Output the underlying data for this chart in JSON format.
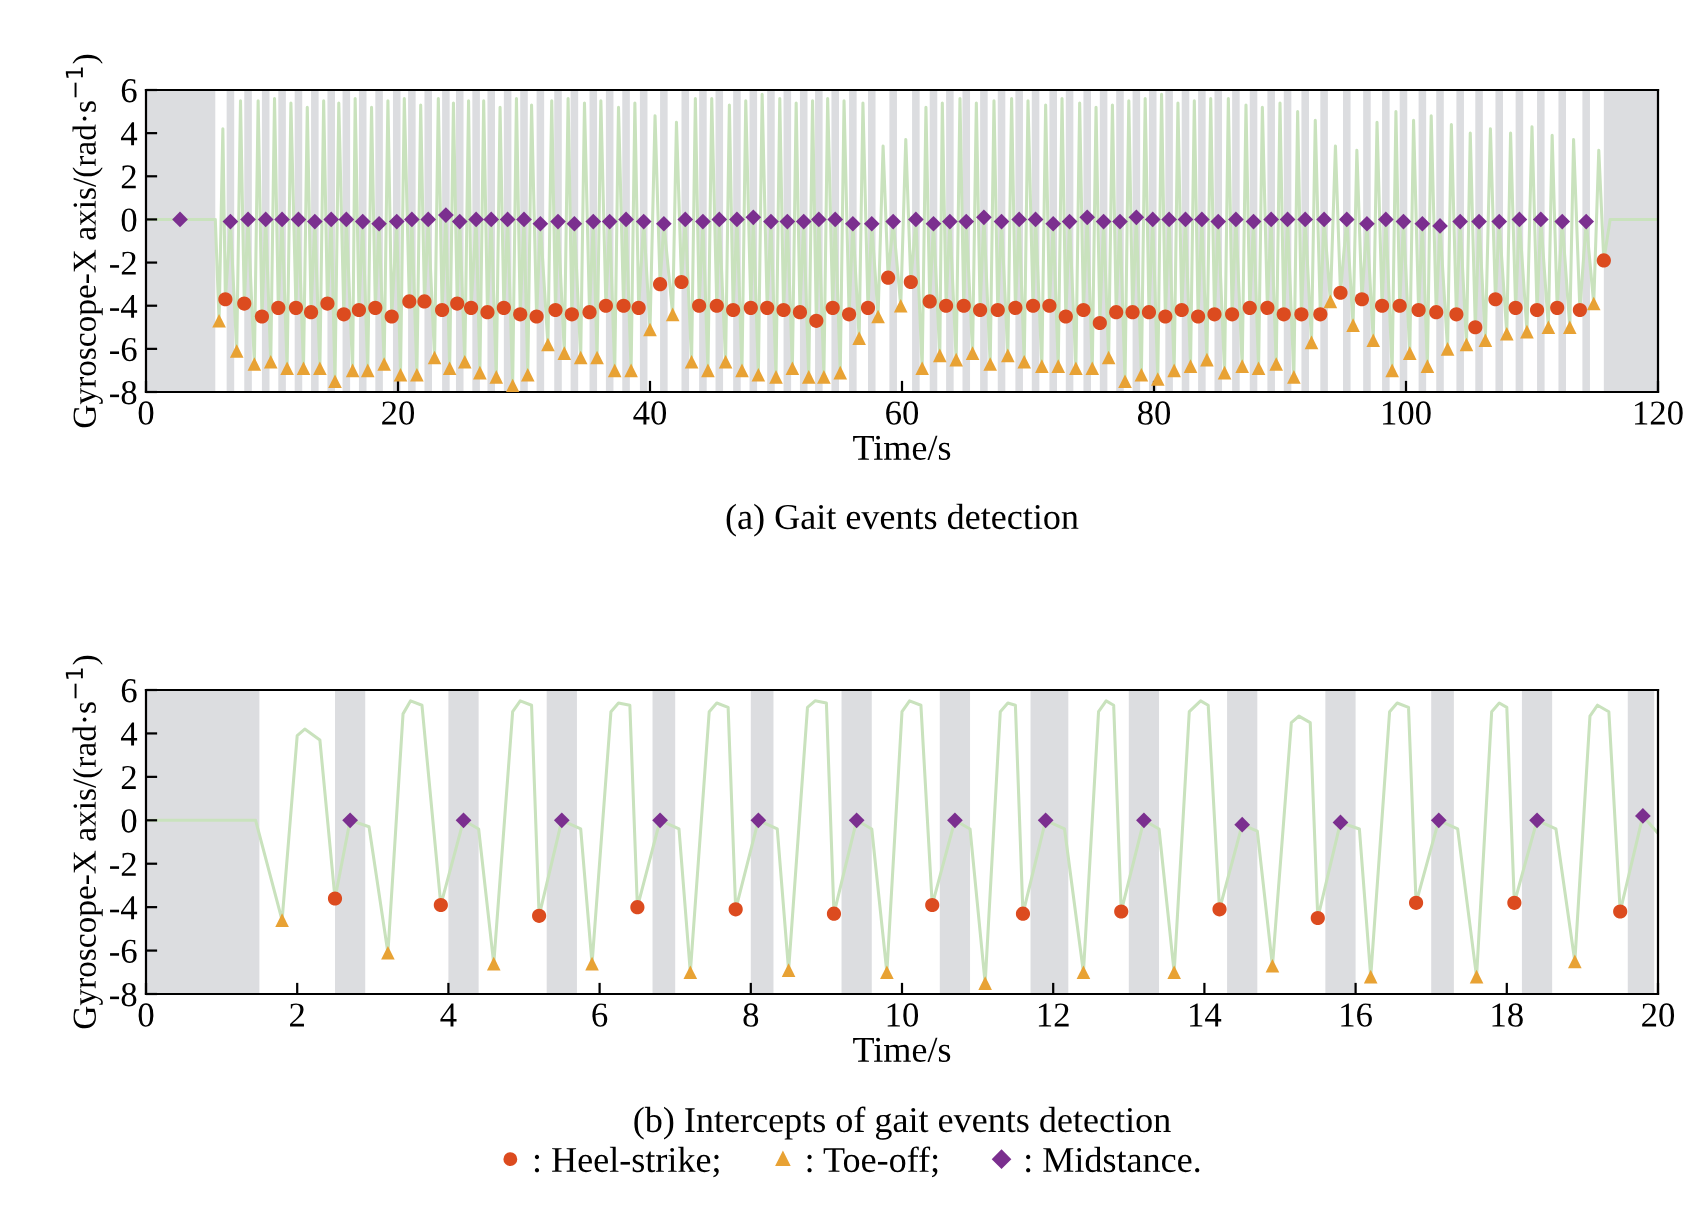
{
  "chart_data": [
    {
      "type": "scatter",
      "title": "(a) Gait events detection",
      "xlabel": "Time/s",
      "ylabel": "Gyroscope-X axis/(rad·s$^{−1}$)",
      "xlim": [
        0,
        120
      ],
      "ylim": [
        -8,
        6
      ],
      "xticks": [
        0,
        20,
        40,
        60,
        80,
        100,
        120
      ],
      "yticks": [
        -8,
        -6,
        -4,
        -2,
        0,
        2,
        4,
        6
      ],
      "grid": false,
      "bands": [
        {
          "axis": "x",
          "from": 0,
          "to": 5.5,
          "color": "#dcdde0"
        },
        {
          "axis": "x",
          "from": 115.7,
          "to": 120,
          "color": "#dcdde0"
        },
        {
          "axis": "x",
          "from": 6.4,
          "to": 7.0,
          "color": "#dcdde0"
        },
        {
          "axis": "x",
          "from": 7.8,
          "to": 8.4,
          "color": "#dcdde0"
        },
        {
          "axis": "x",
          "from": 9.2,
          "to": 9.8,
          "color": "#dcdde0"
        },
        {
          "axis": "x",
          "from": 10.5,
          "to": 11.1,
          "color": "#dcdde0"
        },
        {
          "axis": "x",
          "from": 11.8,
          "to": 12.4,
          "color": "#dcdde0"
        },
        {
          "axis": "x",
          "from": 13.1,
          "to": 13.7,
          "color": "#dcdde0"
        },
        {
          "axis": "x",
          "from": 14.4,
          "to": 15.0,
          "color": "#dcdde0"
        },
        {
          "axis": "x",
          "from": 15.6,
          "to": 16.2,
          "color": "#dcdde0"
        },
        {
          "axis": "x",
          "from": 16.9,
          "to": 17.5,
          "color": "#dcdde0"
        },
        {
          "axis": "x",
          "from": 18.2,
          "to": 18.8,
          "color": "#dcdde0"
        },
        {
          "axis": "x",
          "from": 19.6,
          "to": 20.2,
          "color": "#dcdde0"
        },
        {
          "axis": "x",
          "from": 20.8,
          "to": 21.4,
          "color": "#dcdde0"
        },
        {
          "axis": "x",
          "from": 22.1,
          "to": 22.7,
          "color": "#dcdde0"
        },
        {
          "axis": "x",
          "from": 23.5,
          "to": 24.1,
          "color": "#dcdde0"
        },
        {
          "axis": "x",
          "from": 24.6,
          "to": 25.2,
          "color": "#dcdde0"
        },
        {
          "axis": "x",
          "from": 25.9,
          "to": 26.5,
          "color": "#dcdde0"
        },
        {
          "axis": "x",
          "from": 27.1,
          "to": 27.7,
          "color": "#dcdde0"
        },
        {
          "axis": "x",
          "from": 28.4,
          "to": 29.0,
          "color": "#dcdde0"
        },
        {
          "axis": "x",
          "from": 29.7,
          "to": 30.3,
          "color": "#dcdde0"
        },
        {
          "axis": "x",
          "from": 31.0,
          "to": 31.6,
          "color": "#dcdde0"
        },
        {
          "axis": "x",
          "from": 32.4,
          "to": 33.0,
          "color": "#dcdde0"
        },
        {
          "axis": "x",
          "from": 33.7,
          "to": 34.3,
          "color": "#dcdde0"
        },
        {
          "axis": "x",
          "from": 35.2,
          "to": 35.8,
          "color": "#dcdde0"
        },
        {
          "axis": "x",
          "from": 36.5,
          "to": 37.1,
          "color": "#dcdde0"
        },
        {
          "axis": "x",
          "from": 37.8,
          "to": 38.4,
          "color": "#dcdde0"
        },
        {
          "axis": "x",
          "from": 39.2,
          "to": 39.8,
          "color": "#dcdde0"
        },
        {
          "axis": "x",
          "from": 40.8,
          "to": 41.4,
          "color": "#dcdde0"
        },
        {
          "axis": "x",
          "from": 42.5,
          "to": 43.1,
          "color": "#dcdde0"
        },
        {
          "axis": "x",
          "from": 43.9,
          "to": 44.5,
          "color": "#dcdde0"
        },
        {
          "axis": "x",
          "from": 45.2,
          "to": 45.8,
          "color": "#dcdde0"
        },
        {
          "axis": "x",
          "from": 46.6,
          "to": 47.2,
          "color": "#dcdde0"
        },
        {
          "axis": "x",
          "from": 47.9,
          "to": 48.5,
          "color": "#dcdde0"
        },
        {
          "axis": "x",
          "from": 49.3,
          "to": 49.9,
          "color": "#dcdde0"
        },
        {
          "axis": "x",
          "from": 50.6,
          "to": 51.2,
          "color": "#dcdde0"
        },
        {
          "axis": "x",
          "from": 51.9,
          "to": 52.5,
          "color": "#dcdde0"
        },
        {
          "axis": "x",
          "from": 53.1,
          "to": 53.7,
          "color": "#dcdde0"
        },
        {
          "axis": "x",
          "from": 54.4,
          "to": 55.0,
          "color": "#dcdde0"
        },
        {
          "axis": "x",
          "from": 55.8,
          "to": 56.4,
          "color": "#dcdde0"
        },
        {
          "axis": "x",
          "from": 57.3,
          "to": 57.9,
          "color": "#dcdde0"
        },
        {
          "axis": "x",
          "from": 59.0,
          "to": 59.6,
          "color": "#dcdde0"
        },
        {
          "axis": "x",
          "from": 60.8,
          "to": 61.4,
          "color": "#dcdde0"
        },
        {
          "axis": "x",
          "from": 62.2,
          "to": 62.8,
          "color": "#dcdde0"
        },
        {
          "axis": "x",
          "from": 63.5,
          "to": 64.1,
          "color": "#dcdde0"
        },
        {
          "axis": "x",
          "from": 64.8,
          "to": 65.4,
          "color": "#dcdde0"
        },
        {
          "axis": "x",
          "from": 66.2,
          "to": 66.8,
          "color": "#dcdde0"
        },
        {
          "axis": "x",
          "from": 67.6,
          "to": 68.2,
          "color": "#dcdde0"
        },
        {
          "axis": "x",
          "from": 69.0,
          "to": 69.6,
          "color": "#dcdde0"
        },
        {
          "axis": "x",
          "from": 70.3,
          "to": 70.9,
          "color": "#dcdde0"
        },
        {
          "axis": "x",
          "from": 71.7,
          "to": 72.3,
          "color": "#dcdde0"
        },
        {
          "axis": "x",
          "from": 73.0,
          "to": 73.6,
          "color": "#dcdde0"
        },
        {
          "axis": "x",
          "from": 74.4,
          "to": 75.0,
          "color": "#dcdde0"
        },
        {
          "axis": "x",
          "from": 75.7,
          "to": 76.3,
          "color": "#dcdde0"
        },
        {
          "axis": "x",
          "from": 77.0,
          "to": 77.6,
          "color": "#dcdde0"
        },
        {
          "axis": "x",
          "from": 78.3,
          "to": 78.9,
          "color": "#dcdde0"
        },
        {
          "axis": "x",
          "from": 79.6,
          "to": 80.2,
          "color": "#dcdde0"
        },
        {
          "axis": "x",
          "from": 80.9,
          "to": 81.5,
          "color": "#dcdde0"
        },
        {
          "axis": "x",
          "from": 82.2,
          "to": 82.8,
          "color": "#dcdde0"
        },
        {
          "axis": "x",
          "from": 83.5,
          "to": 84.1,
          "color": "#dcdde0"
        },
        {
          "axis": "x",
          "from": 84.8,
          "to": 85.4,
          "color": "#dcdde0"
        },
        {
          "axis": "x",
          "from": 86.2,
          "to": 86.8,
          "color": "#dcdde0"
        },
        {
          "axis": "x",
          "from": 87.6,
          "to": 88.2,
          "color": "#dcdde0"
        },
        {
          "axis": "x",
          "from": 89.0,
          "to": 89.6,
          "color": "#dcdde0"
        },
        {
          "axis": "x",
          "from": 90.3,
          "to": 90.9,
          "color": "#dcdde0"
        },
        {
          "axis": "x",
          "from": 91.7,
          "to": 92.3,
          "color": "#dcdde0"
        },
        {
          "axis": "x",
          "from": 93.2,
          "to": 93.8,
          "color": "#dcdde0"
        },
        {
          "axis": "x",
          "from": 95.0,
          "to": 95.6,
          "color": "#dcdde0"
        },
        {
          "axis": "x",
          "from": 96.6,
          "to": 97.2,
          "color": "#dcdde0"
        },
        {
          "axis": "x",
          "from": 98.1,
          "to": 98.7,
          "color": "#dcdde0"
        },
        {
          "axis": "x",
          "from": 99.5,
          "to": 100.1,
          "color": "#dcdde0"
        },
        {
          "axis": "x",
          "from": 101.0,
          "to": 101.6,
          "color": "#dcdde0"
        },
        {
          "axis": "x",
          "from": 102.4,
          "to": 103.0,
          "color": "#dcdde0"
        },
        {
          "axis": "x",
          "from": 104.0,
          "to": 104.6,
          "color": "#dcdde0"
        },
        {
          "axis": "x",
          "from": 105.5,
          "to": 106.1,
          "color": "#dcdde0"
        },
        {
          "axis": "x",
          "from": 107.1,
          "to": 107.7,
          "color": "#dcdde0"
        },
        {
          "axis": "x",
          "from": 108.7,
          "to": 109.3,
          "color": "#dcdde0"
        },
        {
          "axis": "x",
          "from": 110.4,
          "to": 111.0,
          "color": "#dcdde0"
        },
        {
          "axis": "x",
          "from": 112.1,
          "to": 112.7,
          "color": "#dcdde0"
        },
        {
          "axis": "x",
          "from": 114.0,
          "to": 114.6,
          "color": "#dcdde0"
        }
      ],
      "series": [
        {
          "type": "line",
          "color": "#c9e2bd",
          "x": [
            0,
            5.5,
            5.8,
            6.1,
            6.3,
            6.7,
            7.2,
            7.5,
            7.8,
            8.1,
            8.6,
            8.9,
            9.2,
            9.5,
            9.9,
            10.2,
            10.5,
            10.8,
            11.2,
            11.5,
            11.9,
            12.1,
            12.5,
            12.8,
            13.1,
            13.4,
            13.8,
            14.1,
            14.4,
            14.7,
            15.0,
            15.3,
            15.7,
            15.9,
            16.4,
            16.6,
            16.9,
            17.2,
            17.6,
            17.9,
            18.2,
            18.5,
            18.9,
            19.2,
            19.5,
            19.9,
            20.2,
            20.5,
            20.9,
            21.1,
            21.5,
            21.8,
            22.1,
            22.4,
            22.9,
            23.2,
            23.5,
            23.8,
            24.1,
            24.4,
            24.7,
            24.9,
            25.3,
            25.6,
            25.8,
            26.2,
            26.5,
            26.8,
            27.1,
            27.4,
            27.8,
            28.1,
            28.4,
            28.7,
            29.1,
            29.4,
            29.7,
            30.0,
            30.3,
            30.6,
            31.0,
            31.3,
            31.9,
            32.2,
            32.5,
            32.7,
            33.2,
            33.5,
            33.8,
            34.0,
            34.5,
            34.8,
            35.2,
            35.5,
            35.8,
            36.1,
            36.5,
            36.8,
            37.2,
            37.5,
            37.9,
            38.1,
            38.5,
            38.8,
            39.1,
            39.5,
            40.0,
            40.4,
            40.8,
            41.1,
            41.8,
            42.1,
            42.5,
            42.8,
            43.3,
            43.6,
            43.9,
            44.2,
            44.6,
            44.9,
            45.3,
            45.5,
            46.0,
            46.3,
            46.6,
            46.9,
            47.3,
            47.6,
            48.0,
            48.2,
            48.6,
            48.9,
            49.3,
            49.6,
            50.0,
            50.3,
            50.6,
            50.9,
            51.3,
            51.6,
            51.9,
            52.2,
            52.6,
            52.9,
            53.2,
            53.4,
            53.8,
            54.1,
            54.5,
            54.7,
            55.1,
            55.4,
            55.8,
            56.1,
            56.6,
            56.9,
            57.3,
            57.6,
            58.1,
            58.5,
            58.9,
            59.3,
            59.9,
            60.3,
            60.7,
            61.1,
            61.6,
            61.9,
            62.2,
            62.5,
            63.0,
            63.2,
            63.5,
            63.8,
            64.3,
            64.6,
            64.9,
            65.1,
            65.6,
            65.9,
            66.2,
            66.5,
            67.0,
            67.3,
            67.6,
            67.9,
            68.4,
            68.7,
            69.0,
            69.3,
            69.7,
            70.0,
            70.4,
            70.6,
            71.1,
            71.4,
            71.7,
            72.0,
            72.4,
            72.7,
            73.0,
            73.3,
            73.8,
            74.1,
            74.4,
            74.7,
            75.1,
            75.4,
            75.7,
            76.0,
            76.4,
            76.7,
            77.0,
            77.3,
            77.7,
            78.0,
            78.3,
            78.6,
            79.0,
            79.3,
            79.6,
            79.9,
            80.3,
            80.6,
            80.9,
            81.2,
            81.6,
            81.9,
            82.2,
            82.5,
            82.9,
            83.2,
            83.5,
            83.8,
            84.2,
            84.5,
            84.8,
            85.1,
            85.6,
            85.9,
            86.2,
            86.5,
            87.0,
            87.3,
            87.6,
            87.9,
            88.3,
            88.6,
            89.0,
            89.3,
            89.7,
            90.0,
            90.3,
            90.6,
            91.1,
            91.4,
            91.7,
            92.0,
            92.5,
            92.8,
            93.2,
            93.5,
            94.0,
            94.4,
            94.8,
            95.3,
            95.8,
            96.1,
            96.5,
            96.9,
            97.4,
            97.7,
            98.1,
            98.4,
            98.9,
            99.2,
            99.5,
            99.8,
            100.3,
            100.6,
            101.0,
            101.3,
            101.7,
            102.0,
            102.4,
            102.7,
            103.3,
            103.6,
            104.0,
            104.3,
            104.8,
            105.1,
            105.5,
            105.8,
            106.3,
            106.7,
            107.1,
            107.4,
            108.0,
            108.3,
            108.7,
            109.0,
            109.6,
            110.0,
            110.4,
            110.7,
            111.3,
            111.6,
            112.0,
            112.4,
            113.0,
            113.3,
            113.8,
            114.3,
            114.9,
            115.3,
            115.7,
            116.2,
            120
          ],
          "values": [
            0,
            0,
            -4.7,
            4.2,
            -3.7,
            -0.1,
            -6.1,
            5.5,
            -3.9,
            0,
            -6.7,
            5.5,
            -4.5,
            0,
            -6.6,
            5.6,
            -4.1,
            0,
            -6.9,
            5.4,
            -4.1,
            0,
            -6.9,
            5.2,
            -4.3,
            -0.1,
            -6.9,
            5.5,
            -3.9,
            0,
            -7.5,
            5.4,
            -4.4,
            0,
            -7.0,
            5.6,
            -4.2,
            -0.1,
            -7.0,
            5.2,
            -4.1,
            -0.2,
            -6.7,
            5.5,
            -4.5,
            -0.1,
            -7.2,
            5.6,
            -3.8,
            0,
            -7.2,
            5.3,
            -3.8,
            0,
            -6.4,
            5.6,
            -4.2,
            0.2,
            -6.9,
            5.4,
            -3.9,
            -0.1,
            -6.6,
            5.5,
            -4.1,
            0,
            -7.1,
            5.5,
            -4.3,
            0,
            -7.3,
            5.2,
            -4.1,
            0,
            -7.7,
            5.6,
            -4.4,
            0,
            -7.2,
            5.3,
            -4.5,
            -0.2,
            -5.8,
            5.5,
            -4.2,
            -0.1,
            -6.2,
            5.6,
            -4.4,
            -0.2,
            -6.4,
            5.4,
            -4.3,
            -0.1,
            -6.4,
            5.5,
            -4.0,
            -0.1,
            -7.0,
            5.2,
            -4.0,
            0,
            -7.0,
            5.4,
            -4.1,
            -0.1,
            -5.1,
            4.8,
            -3.0,
            -0.2,
            -4.4,
            4.5,
            -2.9,
            0,
            -6.6,
            5.6,
            -4.0,
            -0.1,
            -7.0,
            5.6,
            -4.0,
            0,
            -6.6,
            5.3,
            -4.2,
            0,
            -7.0,
            5.5,
            -4.1,
            0.1,
            -7.2,
            5.8,
            -4.1,
            -0.1,
            -7.3,
            5.6,
            -4.2,
            -0.1,
            -6.9,
            5.4,
            -4.3,
            -0.1,
            -7.3,
            5.5,
            -4.7,
            0,
            -7.3,
            5.6,
            -4.1,
            0,
            -7.1,
            5.5,
            -4.4,
            -0.2,
            -5.5,
            5.4,
            -4.1,
            -0.2,
            -4.5,
            3.4,
            -2.7,
            -0.1,
            -4.0,
            3.7,
            -2.9,
            0,
            -6.9,
            5.2,
            -3.8,
            -0.2,
            -6.3,
            5.4,
            -4.0,
            -0.1,
            -6.5,
            5.6,
            -4.0,
            -0.1,
            -6.2,
            5.4,
            -4.2,
            0.1,
            -6.7,
            5.5,
            -4.2,
            -0.1,
            -6.3,
            5.6,
            -4.1,
            0,
            -6.6,
            5.5,
            -4.0,
            0,
            -6.8,
            5.3,
            -4.0,
            -0.2,
            -6.8,
            5.6,
            -4.5,
            -0.1,
            -6.9,
            5.4,
            -4.2,
            0.1,
            -6.9,
            5.2,
            -4.8,
            -0.1,
            -6.4,
            5.3,
            -4.3,
            -0.1,
            -7.5,
            5.5,
            -4.3,
            0.1,
            -7.2,
            5.6,
            -4.3,
            0,
            -7.4,
            5.8,
            -4.5,
            0,
            -7.0,
            5.4,
            -4.2,
            0,
            -6.8,
            5.5,
            -4.5,
            0,
            -6.5,
            5.6,
            -4.4,
            -0.1,
            -7.1,
            5.6,
            -4.4,
            0,
            -6.8,
            5.3,
            -4.1,
            -0.1,
            -6.9,
            5.2,
            -4.1,
            0,
            -6.7,
            5.4,
            -4.4,
            0,
            -7.3,
            5.0,
            -4.4,
            0,
            -5.7,
            4.6,
            -4.4,
            0,
            -3.8,
            3.4,
            -3.4,
            0,
            -4.9,
            3.2,
            -3.7,
            -0.2,
            -5.6,
            4.5,
            -4.0,
            0,
            -7.0,
            5.0,
            -4.0,
            -0.1,
            -6.2,
            4.6,
            -4.2,
            -0.2,
            -6.8,
            4.8,
            -4.3,
            -0.3,
            -6.0,
            4.4,
            -4.4,
            -0.1,
            -5.8,
            4.0,
            -5.0,
            -0.1,
            -5.6,
            4.2,
            -3.7,
            -0.1,
            -5.3,
            4.0,
            -4.1,
            0,
            -5.2,
            4.3,
            -4.2,
            0,
            -5.0,
            3.9,
            -4.1,
            -0.1,
            -5.0,
            3.7,
            -4.2,
            -0.1,
            -3.9,
            3.2,
            -1.9,
            0,
            0
          ]
        },
        {
          "marker": "circle",
          "color": "#dc4b1f",
          "x": [
            6.3,
            7.8,
            9.2,
            10.5,
            11.9,
            13.1,
            14.4,
            15.7,
            16.9,
            18.2,
            19.5,
            20.9,
            22.1,
            23.5,
            24.7,
            25.8,
            27.1,
            28.4,
            29.7,
            31.0,
            32.5,
            33.8,
            35.2,
            36.5,
            37.9,
            39.1,
            40.8,
            42.5,
            43.9,
            45.3,
            46.6,
            48.0,
            49.3,
            50.6,
            51.9,
            53.2,
            54.5,
            55.8,
            57.3,
            58.9,
            60.7,
            62.2,
            63.5,
            64.9,
            66.2,
            67.6,
            69.0,
            70.4,
            71.7,
            73.0,
            74.4,
            75.7,
            77.0,
            78.3,
            79.6,
            80.9,
            82.2,
            83.5,
            84.8,
            86.2,
            87.6,
            89.0,
            90.3,
            91.7,
            93.2,
            94.8,
            96.5,
            98.1,
            99.5,
            101.0,
            102.4,
            104.0,
            105.5,
            107.1,
            108.7,
            110.4,
            112.0,
            113.8,
            115.7
          ],
          "values": [
            -3.7,
            -3.9,
            -4.5,
            -4.1,
            -4.1,
            -4.3,
            -3.9,
            -4.4,
            -4.2,
            -4.1,
            -4.5,
            -3.8,
            -3.8,
            -4.2,
            -3.9,
            -4.1,
            -4.3,
            -4.1,
            -4.4,
            -4.5,
            -4.2,
            -4.4,
            -4.3,
            -4.0,
            -4.0,
            -4.1,
            -3.0,
            -2.9,
            -4.0,
            -4.0,
            -4.2,
            -4.1,
            -4.1,
            -4.2,
            -4.3,
            -4.7,
            -4.1,
            -4.4,
            -4.1,
            -2.7,
            -2.9,
            -3.8,
            -4.0,
            -4.0,
            -4.2,
            -4.2,
            -4.1,
            -4.0,
            -4.0,
            -4.5,
            -4.2,
            -4.8,
            -4.3,
            -4.3,
            -4.3,
            -4.5,
            -4.2,
            -4.5,
            -4.4,
            -4.4,
            -4.1,
            -4.1,
            -4.4,
            -4.4,
            -4.4,
            -3.4,
            -3.7,
            -4.0,
            -4.0,
            -4.2,
            -4.3,
            -4.4,
            -5.0,
            -3.7,
            -4.1,
            -4.2,
            -4.1,
            -4.2,
            -1.9
          ]
        },
        {
          "marker": "triangle",
          "color": "#e8a234",
          "x": [
            5.8,
            7.2,
            8.6,
            9.9,
            11.2,
            12.5,
            13.8,
            15.0,
            16.4,
            17.6,
            18.9,
            20.2,
            21.5,
            22.9,
            24.1,
            25.3,
            26.5,
            27.8,
            29.1,
            30.3,
            31.9,
            33.2,
            34.5,
            35.8,
            37.2,
            38.5,
            40.0,
            41.8,
            43.3,
            44.6,
            46.0,
            47.3,
            48.6,
            50.0,
            51.3,
            52.6,
            53.8,
            55.1,
            56.6,
            58.1,
            59.9,
            61.6,
            63.0,
            64.3,
            65.6,
            67.0,
            68.4,
            69.7,
            71.1,
            72.4,
            73.8,
            75.1,
            76.4,
            77.7,
            79.0,
            80.3,
            81.6,
            82.9,
            84.2,
            85.6,
            87.0,
            88.3,
            89.7,
            91.1,
            92.5,
            94.0,
            95.8,
            97.4,
            98.9,
            100.3,
            101.7,
            103.3,
            104.8,
            106.3,
            108.0,
            109.6,
            111.3,
            113.0,
            114.9
          ],
          "values": [
            -4.7,
            -6.1,
            -6.7,
            -6.6,
            -6.9,
            -6.9,
            -6.9,
            -7.5,
            -7.0,
            -7.0,
            -6.7,
            -7.2,
            -7.2,
            -6.4,
            -6.9,
            -6.6,
            -7.1,
            -7.3,
            -7.7,
            -7.2,
            -5.8,
            -6.2,
            -6.4,
            -6.4,
            -7.0,
            -7.0,
            -5.1,
            -4.4,
            -6.6,
            -7.0,
            -6.6,
            -7.0,
            -7.2,
            -7.3,
            -6.9,
            -7.3,
            -7.3,
            -7.1,
            -5.5,
            -4.5,
            -4.0,
            -6.9,
            -6.3,
            -6.5,
            -6.2,
            -6.7,
            -6.3,
            -6.6,
            -6.8,
            -6.8,
            -6.9,
            -6.9,
            -6.4,
            -7.5,
            -7.2,
            -7.4,
            -7.0,
            -6.8,
            -6.5,
            -7.1,
            -6.8,
            -6.9,
            -6.7,
            -7.3,
            -5.7,
            -3.8,
            -4.9,
            -5.6,
            -7.0,
            -6.2,
            -6.8,
            -6.0,
            -5.8,
            -5.6,
            -5.3,
            -5.2,
            -5.0,
            -5.0,
            -3.9
          ]
        },
        {
          "marker": "diamond",
          "color": "#7b2f8f",
          "x": [
            2.7,
            6.7,
            8.1,
            9.5,
            10.8,
            12.1,
            13.4,
            14.7,
            15.9,
            17.2,
            18.5,
            19.9,
            21.1,
            22.4,
            23.8,
            24.9,
            26.2,
            27.4,
            28.7,
            30.0,
            31.3,
            32.7,
            34.0,
            35.5,
            36.8,
            38.1,
            39.5,
            41.1,
            42.8,
            44.2,
            45.5,
            46.9,
            48.2,
            49.6,
            50.9,
            52.2,
            53.4,
            54.7,
            56.1,
            57.6,
            59.3,
            61.1,
            62.5,
            63.8,
            65.1,
            66.5,
            67.9,
            69.3,
            70.6,
            72.0,
            73.3,
            74.7,
            76.0,
            77.3,
            78.6,
            79.9,
            81.2,
            82.5,
            83.8,
            85.1,
            86.5,
            87.9,
            89.3,
            90.6,
            92.0,
            93.5,
            95.3,
            96.9,
            98.4,
            99.8,
            101.3,
            102.7,
            104.3,
            105.8,
            107.4,
            109.0,
            110.7,
            112.4,
            114.3
          ],
          "values": [
            0,
            -0.1,
            0,
            0,
            0,
            0,
            -0.1,
            0,
            0,
            -0.1,
            -0.2,
            -0.1,
            0,
            0,
            0.2,
            -0.1,
            0,
            0,
            0,
            0,
            -0.2,
            -0.1,
            -0.2,
            -0.1,
            -0.1,
            0,
            -0.1,
            -0.2,
            0,
            -0.1,
            0,
            0,
            0.1,
            -0.1,
            -0.1,
            -0.1,
            0,
            0,
            -0.2,
            -0.2,
            -0.1,
            0,
            -0.2,
            -0.1,
            -0.1,
            0.1,
            -0.1,
            0,
            0,
            -0.2,
            -0.1,
            0.1,
            -0.1,
            -0.1,
            0.1,
            0,
            0,
            0,
            0,
            -0.1,
            0,
            -0.1,
            0,
            0,
            0,
            0,
            0,
            -0.2,
            0,
            -0.1,
            -0.2,
            -0.3,
            -0.1,
            -0.1,
            -0.1,
            0,
            0,
            -0.1,
            -0.1
          ]
        }
      ]
    },
    {
      "type": "scatter",
      "title": "(b) Intercepts of gait events detection",
      "xlabel": "Time/s",
      "ylabel": "Gyroscope-X axis/(rad·s$^{−1}$)",
      "xlim": [
        0,
        20
      ],
      "ylim": [
        -8,
        6
      ],
      "xticks": [
        0,
        2,
        4,
        6,
        8,
        10,
        12,
        14,
        16,
        18,
        20
      ],
      "yticks": [
        -8,
        -6,
        -4,
        -2,
        0,
        2,
        4,
        6
      ],
      "grid": false,
      "legend": "bottom",
      "bands": [
        {
          "axis": "x",
          "from": 0,
          "to": 1.5,
          "color": "#dcdde0"
        },
        {
          "axis": "x",
          "from": 2.5,
          "to": 2.9,
          "color": "#dcdde0"
        },
        {
          "axis": "x",
          "from": 4.0,
          "to": 4.4,
          "color": "#dcdde0"
        },
        {
          "axis": "x",
          "from": 5.3,
          "to": 5.7,
          "color": "#dcdde0"
        },
        {
          "axis": "x",
          "from": 6.7,
          "to": 7.0,
          "color": "#dcdde0"
        },
        {
          "axis": "x",
          "from": 8.0,
          "to": 8.3,
          "color": "#dcdde0"
        },
        {
          "axis": "x",
          "from": 9.2,
          "to": 9.6,
          "color": "#dcdde0"
        },
        {
          "axis": "x",
          "from": 10.5,
          "to": 10.9,
          "color": "#dcdde0"
        },
        {
          "axis": "x",
          "from": 11.7,
          "to": 12.2,
          "color": "#dcdde0"
        },
        {
          "axis": "x",
          "from": 13.0,
          "to": 13.4,
          "color": "#dcdde0"
        },
        {
          "axis": "x",
          "from": 14.3,
          "to": 14.7,
          "color": "#dcdde0"
        },
        {
          "axis": "x",
          "from": 15.6,
          "to": 16.0,
          "color": "#dcdde0"
        },
        {
          "axis": "x",
          "from": 17.0,
          "to": 17.3,
          "color": "#dcdde0"
        },
        {
          "axis": "x",
          "from": 18.2,
          "to": 18.6,
          "color": "#dcdde0"
        },
        {
          "axis": "x",
          "from": 19.6,
          "to": 19.95,
          "color": "#dcdde0"
        }
      ],
      "series": [
        {
          "type": "line",
          "color": "#c9e2bd",
          "x": [
            0,
            1.45,
            1.8,
            2.0,
            2.1,
            2.3,
            2.5,
            2.7,
            2.95,
            3.2,
            3.4,
            3.5,
            3.65,
            3.9,
            4.2,
            4.4,
            4.6,
            4.85,
            4.95,
            5.1,
            5.2,
            5.5,
            5.75,
            5.9,
            6.15,
            6.25,
            6.4,
            6.5,
            6.8,
            7.05,
            7.2,
            7.45,
            7.55,
            7.7,
            7.8,
            8.1,
            8.35,
            8.5,
            8.75,
            8.85,
            9.0,
            9.1,
            9.4,
            9.6,
            9.8,
            10.0,
            10.1,
            10.25,
            10.4,
            10.7,
            10.9,
            11.1,
            11.3,
            11.4,
            11.5,
            11.6,
            11.9,
            12.15,
            12.4,
            12.6,
            12.7,
            12.8,
            12.9,
            13.2,
            13.4,
            13.6,
            13.8,
            13.95,
            14.05,
            14.2,
            14.5,
            14.7,
            14.9,
            15.15,
            15.25,
            15.4,
            15.5,
            15.8,
            16.05,
            16.2,
            16.45,
            16.55,
            16.7,
            16.8,
            17.1,
            17.35,
            17.6,
            17.8,
            17.9,
            18.0,
            18.1,
            18.4,
            18.65,
            18.9,
            19.1,
            19.2,
            19.35,
            19.5,
            19.8,
            20
          ],
          "values": [
            0,
            0,
            -4.6,
            3.9,
            4.2,
            3.7,
            -3.6,
            0,
            -0.3,
            -6.1,
            4.9,
            5.5,
            5.3,
            -3.9,
            0,
            -0.4,
            -6.6,
            5.0,
            5.5,
            5.3,
            -4.4,
            0,
            -0.4,
            -6.6,
            5.0,
            5.4,
            5.3,
            -4.0,
            0,
            -0.4,
            -7.0,
            5.0,
            5.4,
            5.2,
            -4.1,
            0,
            -0.4,
            -6.9,
            5.2,
            5.5,
            5.4,
            -4.3,
            0,
            -0.4,
            -7.0,
            5.0,
            5.5,
            5.3,
            -3.9,
            0,
            -0.4,
            -7.5,
            5.0,
            5.4,
            5.3,
            -4.3,
            0,
            -0.4,
            -7.0,
            5.0,
            5.5,
            5.3,
            -4.2,
            0,
            -0.4,
            -7.0,
            5.0,
            5.5,
            5.3,
            -4.1,
            -0.2,
            -0.5,
            -6.7,
            4.5,
            4.8,
            4.5,
            -4.5,
            -0.1,
            -0.4,
            -7.2,
            5.0,
            5.4,
            5.2,
            -3.8,
            0,
            -0.4,
            -7.2,
            5.0,
            5.4,
            5.2,
            -3.8,
            0,
            -0.4,
            -6.5,
            4.8,
            5.3,
            5.0,
            -4.2,
            0.2,
            -0.6
          ]
        },
        {
          "name": ": Heel-strike;",
          "marker": "circle",
          "color": "#dc4b1f",
          "x": [
            2.5,
            3.9,
            5.2,
            6.5,
            7.8,
            9.1,
            10.4,
            11.6,
            12.9,
            14.2,
            15.5,
            16.8,
            18.1,
            19.5
          ],
          "values": [
            -3.6,
            -3.9,
            -4.4,
            -4.0,
            -4.1,
            -4.3,
            -3.9,
            -4.3,
            -4.2,
            -4.1,
            -4.5,
            -3.8,
            -3.8,
            -4.2
          ]
        },
        {
          "name": ": Toe-off;",
          "marker": "triangle",
          "color": "#e8a234",
          "x": [
            1.8,
            3.2,
            4.6,
            5.9,
            7.2,
            8.5,
            9.8,
            11.1,
            12.4,
            13.6,
            14.9,
            16.2,
            17.6,
            18.9
          ],
          "values": [
            -4.6,
            -6.1,
            -6.6,
            -6.6,
            -7.0,
            -6.9,
            -7.0,
            -7.5,
            -7.0,
            -7.0,
            -6.7,
            -7.2,
            -7.2,
            -6.5
          ]
        },
        {
          "name": ": Midstance.",
          "marker": "diamond",
          "color": "#7b2f8f",
          "x": [
            2.7,
            4.2,
            5.5,
            6.8,
            8.1,
            9.4,
            10.7,
            11.9,
            13.2,
            14.5,
            15.8,
            17.1,
            18.4,
            19.8
          ],
          "values": [
            0,
            0,
            0,
            0,
            0,
            0,
            0,
            0,
            0,
            -0.2,
            -0.1,
            0,
            0,
            0.2
          ]
        }
      ]
    }
  ]
}
